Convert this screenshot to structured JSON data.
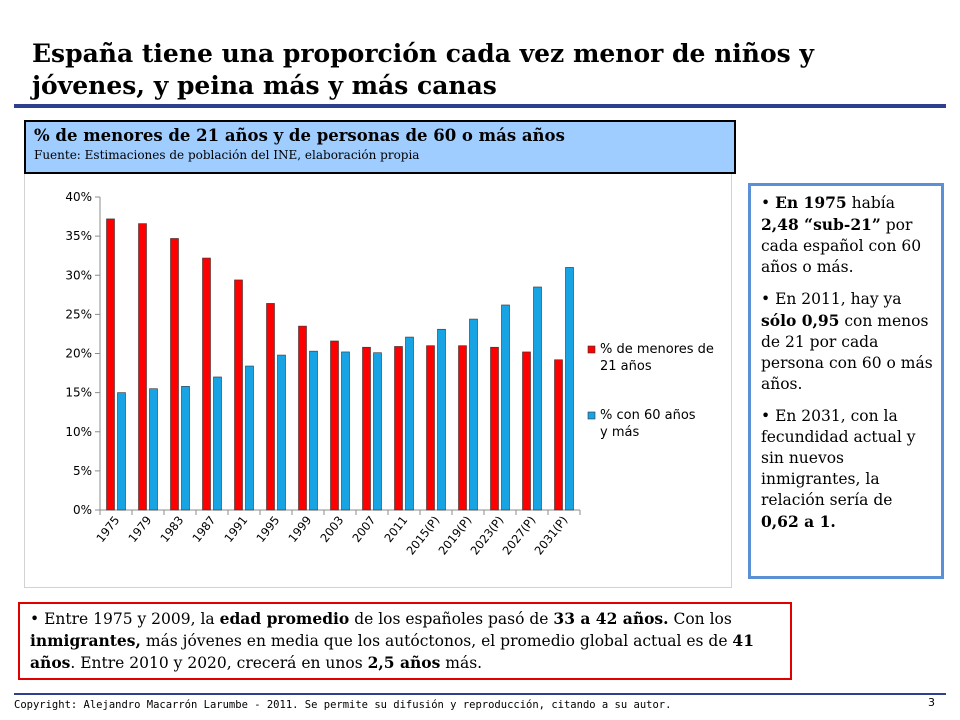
{
  "slide": {
    "title": "España tiene una proporción cada vez menor de niños y jóvenes, y peina más y más canas",
    "chart_header": {
      "title": "% de menores de 21 años y de personas de 60 o más años",
      "source": "Fuente: Estimaciones de población del INE, elaboración propia"
    },
    "side_bullets": [
      {
        "parts": [
          {
            "t": "En 1975",
            "b": true
          },
          {
            "t": " había ",
            "b": false
          },
          {
            "t": "2,48 “sub-21”",
            "b": true
          },
          {
            "t": " por cada español con 60 años o más.",
            "b": false
          }
        ]
      },
      {
        "parts": [
          {
            "t": "En 2011, hay ya ",
            "b": false
          },
          {
            "t": "sólo 0,95",
            "b": true
          },
          {
            "t": " con menos de 21 por cada persona con 60 o más años.",
            "b": false
          }
        ]
      },
      {
        "parts": [
          {
            "t": "En 2031, con la fecundidad actual y sin nuevos inmigrantes, la relación sería de ",
            "b": false
          },
          {
            "t": "0,62 a 1.",
            "b": true
          }
        ]
      }
    ],
    "bottom_bullet": {
      "parts": [
        {
          "t": "Entre 1975 y 2009, la ",
          "b": false
        },
        {
          "t": "edad promedio",
          "b": true
        },
        {
          "t": " de los españoles pasó de ",
          "b": false
        },
        {
          "t": "33 a 42 años.",
          "b": true
        },
        {
          "t": " Con los ",
          "b": false
        },
        {
          "t": "inmigrantes,",
          "b": true
        },
        {
          "t": " más jóvenes en media que los autóctonos, el promedio global actual es de ",
          "b": false
        },
        {
          "t": "41 años",
          "b": true
        },
        {
          "t": ". Entre 2010 y 2020, crecerá en unos ",
          "b": false
        },
        {
          "t": "2,5 años",
          "b": true
        },
        {
          "t": " más.",
          "b": false
        }
      ]
    },
    "copyright": "Copyright: Alejandro Macarrón Larumbe - 2011. Se permite su difusión y reproducción, citando a su autor.",
    "page_number": "3",
    "colors": {
      "accent_rule": "#2e3f8f",
      "header_fill": "#9fcdff",
      "side_border": "#5b8fd6",
      "bottom_border": "#e00000"
    }
  },
  "chart_data": {
    "type": "bar",
    "categories": [
      "1975",
      "1979",
      "1983",
      "1987",
      "1991",
      "1995",
      "1999",
      "2003",
      "2007",
      "2011",
      "2015(P)",
      "2019(P)",
      "2023(P)",
      "2027(P)",
      "2031(P)"
    ],
    "series": [
      {
        "name": "% de menores de 21 años",
        "color": "#ff0000",
        "values": [
          37.2,
          36.6,
          34.7,
          32.2,
          29.4,
          26.4,
          23.5,
          21.6,
          20.8,
          20.9,
          21.0,
          21.0,
          20.8,
          20.2,
          19.2
        ]
      },
      {
        "name": "% con 60 años y más",
        "color": "#18a3e5",
        "values": [
          15.0,
          15.5,
          15.8,
          17.0,
          18.4,
          19.8,
          20.3,
          20.2,
          20.1,
          22.1,
          23.1,
          24.4,
          26.2,
          28.5,
          31.0
        ]
      }
    ],
    "y_ticks": [
      "0%",
      "5%",
      "10%",
      "15%",
      "20%",
      "25%",
      "30%",
      "35%",
      "40%"
    ],
    "ylim": [
      0,
      40
    ],
    "legend_position": "right",
    "grid": false
  }
}
